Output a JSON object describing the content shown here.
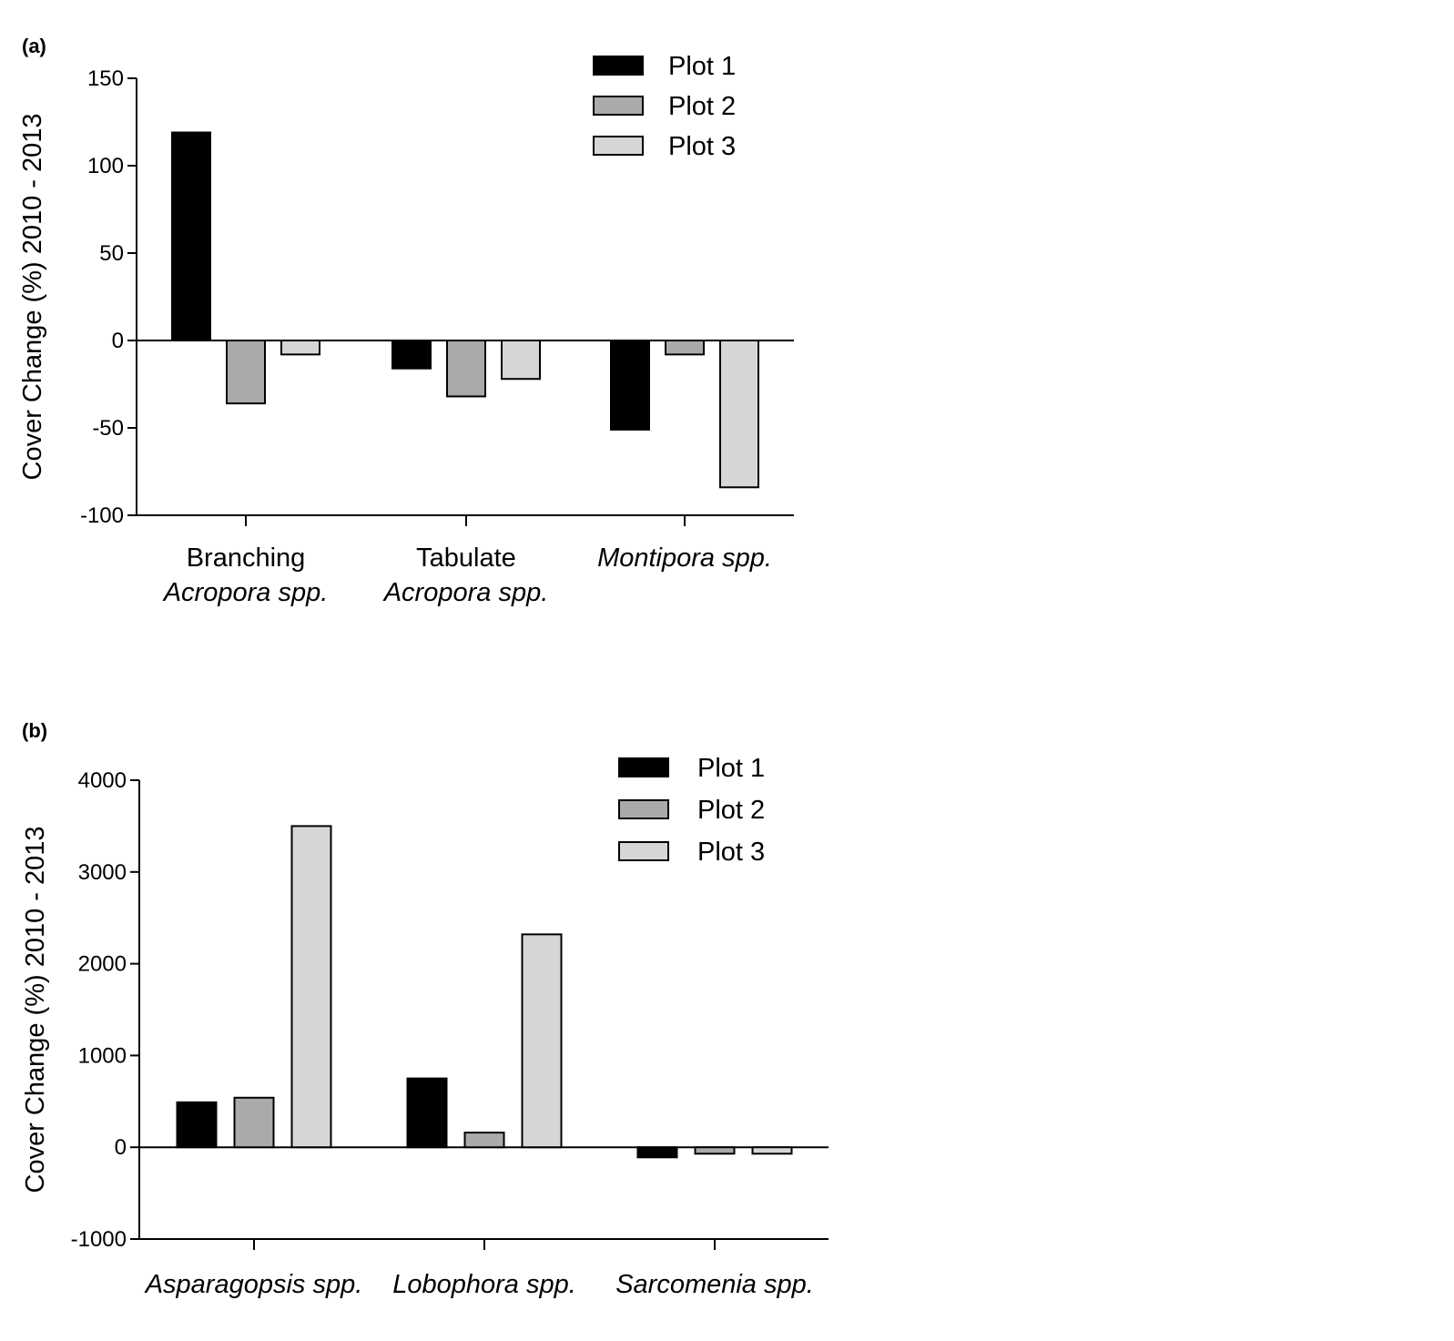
{
  "chart_data": [
    {
      "panel": "(a)",
      "type": "bar",
      "categories": [
        {
          "line1": "Branching",
          "line2": "Acropora spp."
        },
        {
          "line1": "Tabulate",
          "line2": "Acropora spp."
        },
        {
          "line1": "Montipora spp.",
          "line2": ""
        }
      ],
      "series": [
        {
          "name": "Plot 1",
          "color": "#000000",
          "values": [
            119,
            -16,
            -51
          ]
        },
        {
          "name": "Plot 2",
          "color": "#aaaaaa",
          "values": [
            -36,
            -32,
            -8
          ]
        },
        {
          "name": "Plot 3",
          "color": "#d6d6d6",
          "values": [
            -8,
            -22,
            -84
          ]
        }
      ],
      "ylabel": "Cover Change (%) 2010 - 2013",
      "ylim": [
        -100,
        150
      ],
      "yticks": [
        150,
        100,
        50,
        0,
        -50,
        -100
      ],
      "legend": "top-right",
      "grid": false
    },
    {
      "panel": "(b)",
      "type": "bar",
      "categories": [
        {
          "line1": "Asparagopsis spp.",
          "line2": ""
        },
        {
          "line1": "Lobophora spp.",
          "line2": ""
        },
        {
          "line1": "Sarcomenia spp.",
          "line2": ""
        }
      ],
      "series": [
        {
          "name": "Plot 1",
          "color": "#000000",
          "values": [
            490,
            750,
            -110
          ]
        },
        {
          "name": "Plot 2",
          "color": "#aaaaaa",
          "values": [
            540,
            160,
            -70
          ]
        },
        {
          "name": "Plot 3",
          "color": "#d6d6d6",
          "values": [
            3500,
            2320,
            -70
          ]
        }
      ],
      "ylabel": "Cover Change (%) 2010 - 2013",
      "ylim": [
        -1000,
        4000
      ],
      "yticks": [
        4000,
        3000,
        2000,
        1000,
        0,
        -1000
      ],
      "legend": "top-right",
      "grid": false
    }
  ]
}
